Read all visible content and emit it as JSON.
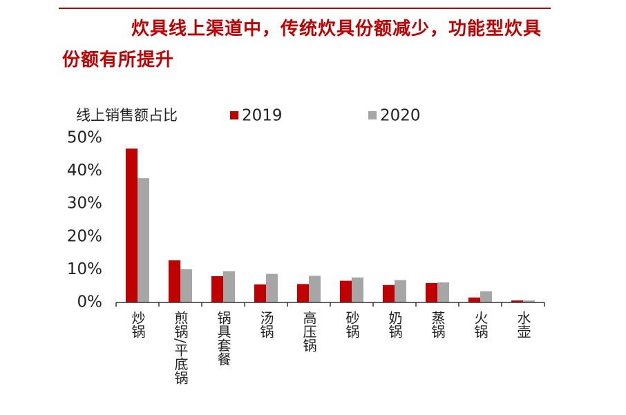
{
  "chart_data": {
    "type": "bar",
    "title": "炊具线上渠道中，传统炊具份额减少，功能型炊具份额有所提升",
    "y_label": "线上销售额占比",
    "categories": [
      "炒锅",
      "煎锅/平底锅",
      "锅具套餐",
      "汤锅",
      "高压锅",
      "砂锅",
      "奶锅",
      "蒸锅",
      "火锅",
      "水壶"
    ],
    "series": [
      {
        "name": "2019",
        "color": "#c00000",
        "values": [
          46.8,
          12.8,
          8.0,
          5.5,
          5.6,
          6.6,
          5.3,
          5.9,
          1.5,
          0.6
        ]
      },
      {
        "name": "2020",
        "color": "#a6a6a6",
        "values": [
          37.8,
          10.1,
          9.5,
          8.7,
          8.1,
          7.6,
          6.8,
          6.1,
          3.4,
          0.6
        ]
      }
    ],
    "ylim": [
      0,
      50
    ],
    "yticks": [
      {
        "value": 0,
        "label": "0%"
      },
      {
        "value": 10,
        "label": "10%"
      },
      {
        "value": 20,
        "label": "20%"
      },
      {
        "value": 30,
        "label": "30%"
      },
      {
        "value": 40,
        "label": "40%"
      },
      {
        "value": 50,
        "label": "50%"
      }
    ],
    "grid": false
  }
}
